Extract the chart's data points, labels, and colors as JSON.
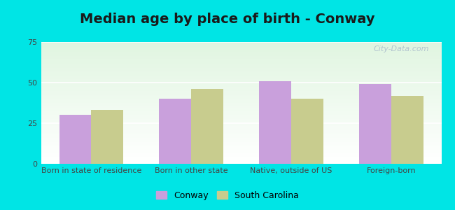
{
  "title": "Median age by place of birth - Conway",
  "categories": [
    "Born in state of residence",
    "Born in other state",
    "Native, outside of US",
    "Foreign-born"
  ],
  "conway_values": [
    30,
    40,
    51,
    49
  ],
  "sc_values": [
    33,
    46,
    40,
    42
  ],
  "conway_color": "#c9a0dc",
  "sc_color": "#c8cc8e",
  "bar_width": 0.32,
  "ylim": [
    0,
    75
  ],
  "yticks": [
    0,
    25,
    50,
    75
  ],
  "legend_labels": [
    "Conway",
    "South Carolina"
  ],
  "bg_color": "#00e5e5",
  "plot_bg_top": "#dff5df",
  "plot_bg_bottom": "#ffffff",
  "watermark": "City-Data.com",
  "title_fontsize": 14,
  "tick_fontsize": 8,
  "legend_fontsize": 9
}
